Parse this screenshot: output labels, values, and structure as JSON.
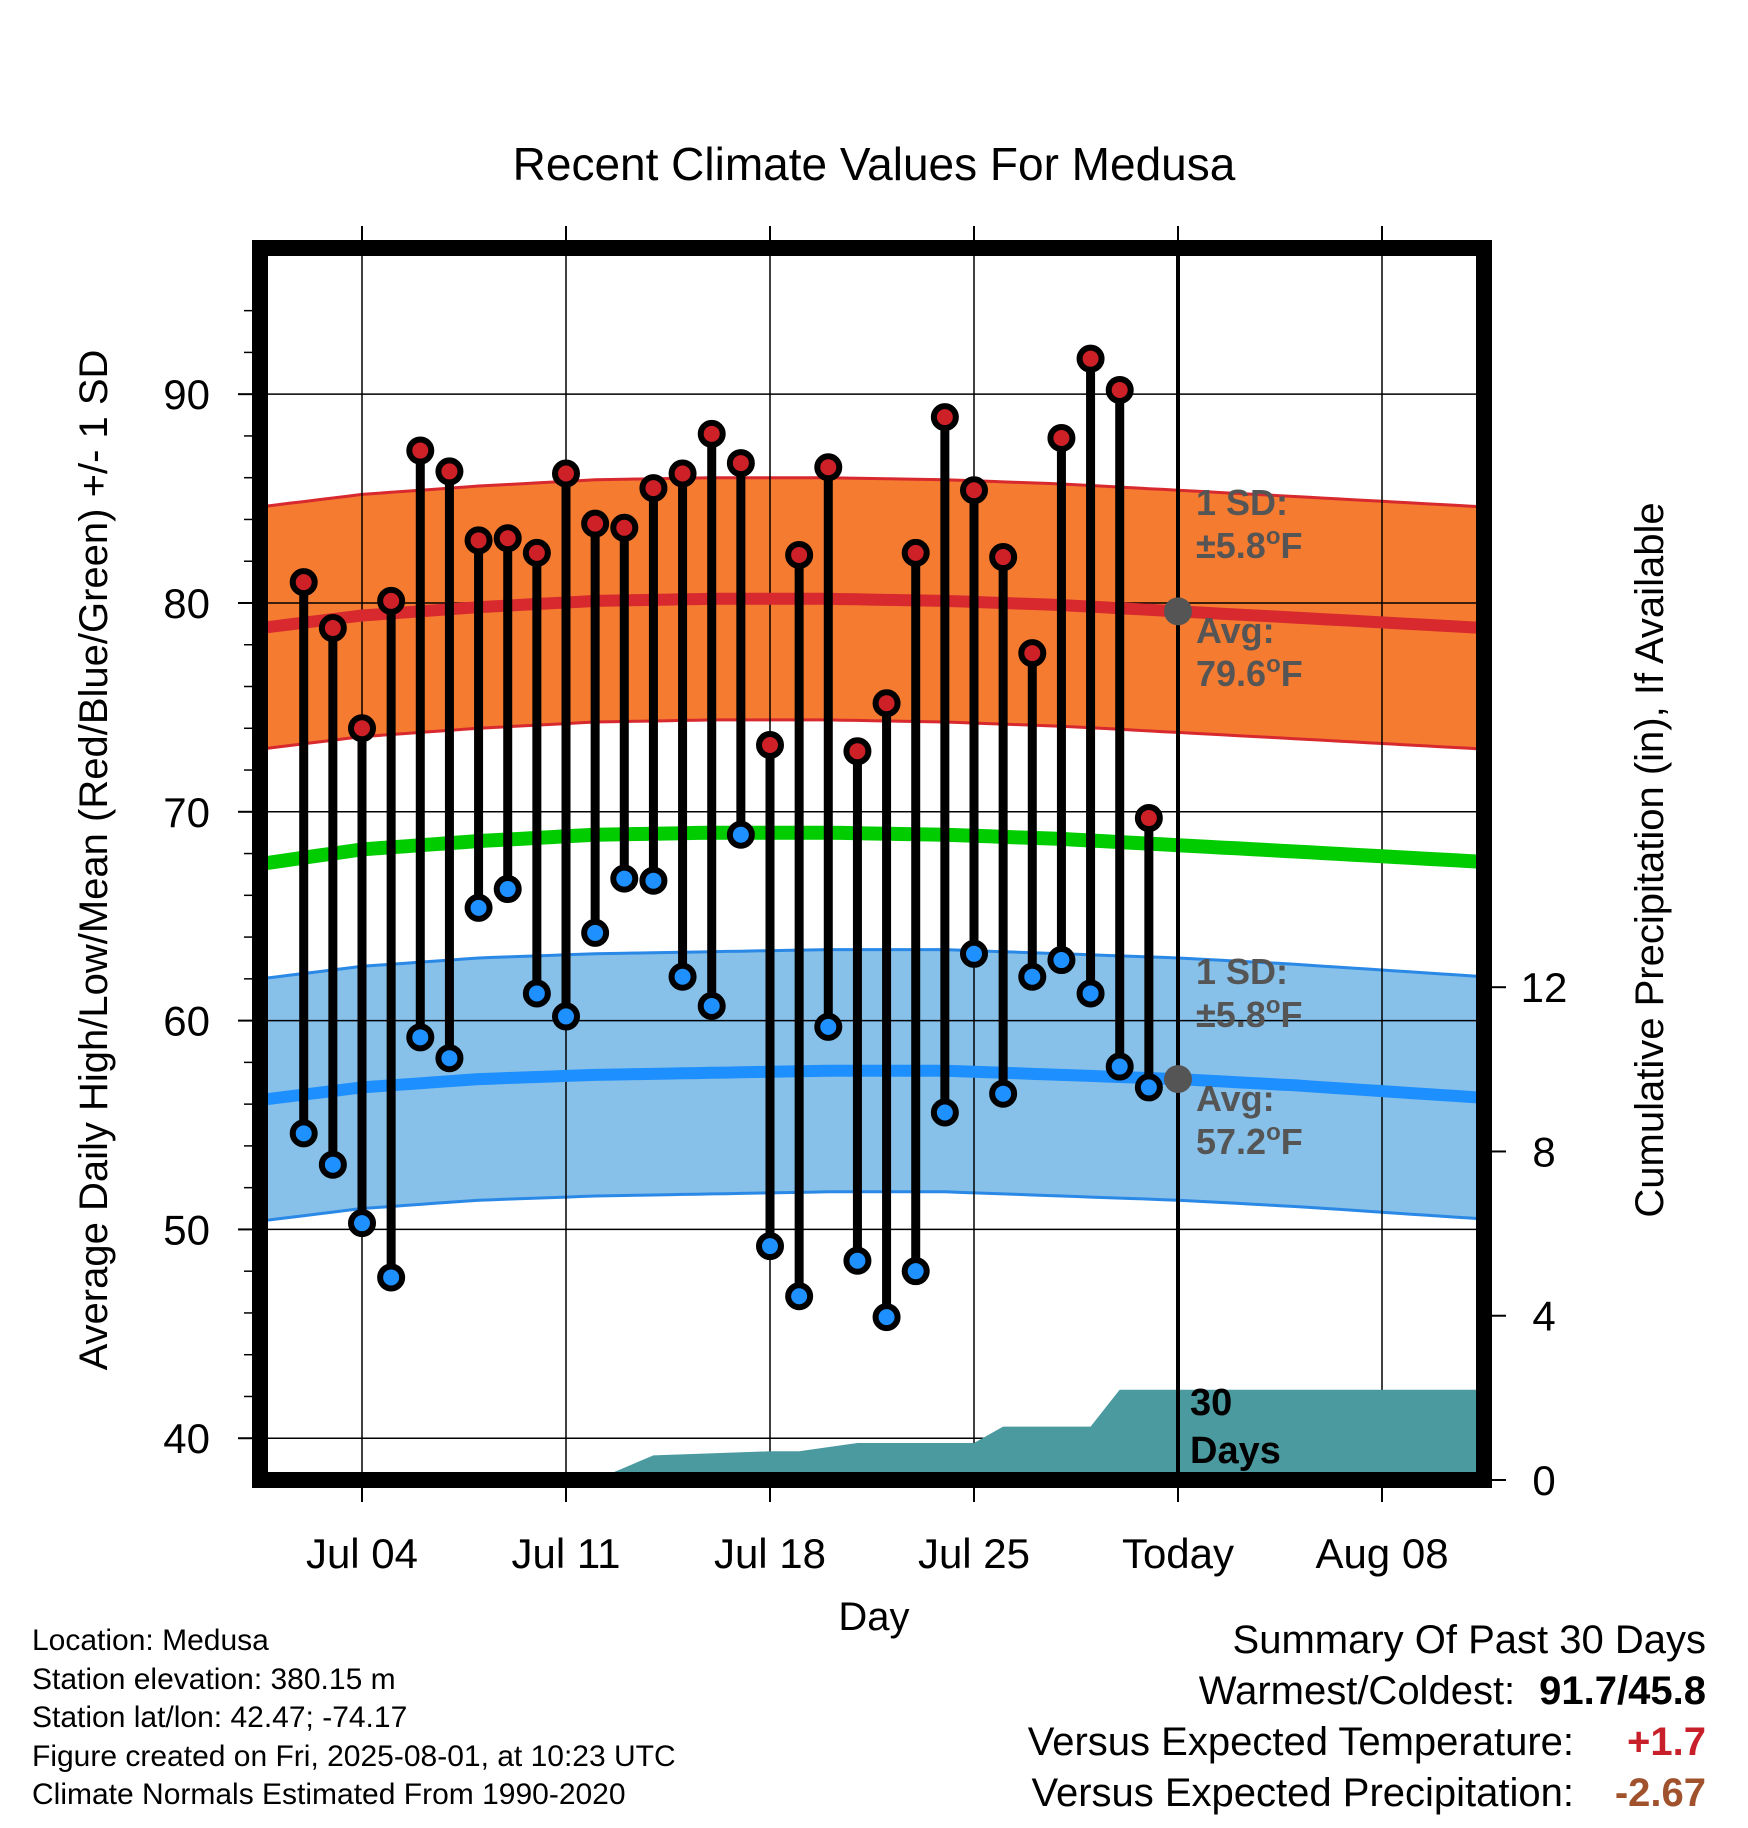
{
  "chart_data": {
    "type": "line",
    "title": "Recent Climate Values For Medusa",
    "xlabel": "Day",
    "ylabel": "Average Daily High/Low/Mean (Red/Blue/Green) +/- 1 SD",
    "y2label": "Cumulative Precipitation (in), If Available",
    "ylim": [
      38,
      97
    ],
    "y2lim": [
      0,
      30
    ],
    "xlim_days": [
      -31.5,
      10.5
    ],
    "x_tick_labels": [
      "Jul 04",
      "Jul 11",
      "Jul 18",
      "Jul 25",
      "Today",
      "Aug 08"
    ],
    "x_tick_days": [
      -28,
      -21,
      -14,
      -7,
      0,
      7
    ],
    "y_ticks": [
      40,
      50,
      60,
      70,
      80,
      90
    ],
    "y_minor_ticks": [
      42,
      44,
      46,
      48,
      52,
      54,
      56,
      58,
      62,
      64,
      66,
      68,
      72,
      74,
      76,
      78,
      82,
      84,
      86,
      88,
      92,
      94
    ],
    "y2_ticks": [
      0,
      4,
      8,
      12
    ],
    "grid": true,
    "today_marker": true,
    "colors": {
      "high_band": "#f47b30",
      "high_band_edge": "#d7292e",
      "high_mean": "#d7292e",
      "low_band": "#87c0e8",
      "low_band_edge": "#2a88e6",
      "low_mean": "#1e8fff",
      "mean_line": "#00cc00",
      "precip": "#4a9aa0",
      "high_dot": "#cd2027",
      "low_dot": "#1e90ff",
      "avg_dot": "#555555",
      "annotation": "#555555"
    },
    "normals": {
      "days": [
        -31.5,
        -28,
        -24,
        -20,
        -16,
        -12,
        -8,
        -4,
        0,
        4,
        10.5
      ],
      "high_mean": [
        78.8,
        79.4,
        79.8,
        80.1,
        80.2,
        80.2,
        80.1,
        79.9,
        79.6,
        79.3,
        78.8
      ],
      "low_mean": [
        56.2,
        56.8,
        57.2,
        57.4,
        57.5,
        57.6,
        57.6,
        57.4,
        57.2,
        56.9,
        56.3
      ],
      "daily_mean": [
        67.5,
        68.2,
        68.6,
        68.9,
        69.0,
        69.0,
        68.9,
        68.7,
        68.4,
        68.1,
        67.6
      ],
      "sd": 5.8
    },
    "series": [
      {
        "name": "High",
        "days": [
          -30,
          -29,
          -28,
          -27,
          -26,
          -25,
          -24,
          -23,
          -22,
          -21,
          -20,
          -19,
          -18,
          -17,
          -16,
          -15,
          -14,
          -13,
          -12,
          -11,
          -10,
          -9,
          -8,
          -7,
          -6,
          -5,
          -4,
          -3,
          -2,
          -1
        ],
        "values": [
          81.0,
          78.8,
          74.0,
          80.1,
          87.3,
          86.3,
          83.0,
          83.1,
          82.4,
          86.2,
          83.8,
          83.6,
          85.5,
          86.2,
          88.1,
          86.7,
          73.2,
          82.3,
          86.5,
          72.9,
          75.2,
          82.4,
          88.9,
          85.4,
          82.2,
          77.6,
          87.9,
          91.7,
          90.2,
          69.7
        ]
      },
      {
        "name": "Low",
        "days": [
          -30,
          -29,
          -28,
          -27,
          -26,
          -25,
          -24,
          -23,
          -22,
          -21,
          -20,
          -19,
          -18,
          -17,
          -16,
          -15,
          -14,
          -13,
          -12,
          -11,
          -10,
          -9,
          -8,
          -7,
          -6,
          -5,
          -4,
          -3,
          -2,
          -1
        ],
        "values": [
          54.6,
          53.1,
          50.3,
          47.7,
          59.2,
          58.2,
          65.4,
          66.3,
          61.3,
          60.2,
          64.2,
          66.8,
          66.7,
          62.1,
          60.7,
          68.9,
          49.2,
          46.8,
          59.7,
          48.5,
          45.8,
          48.0,
          55.6,
          63.2,
          56.5,
          62.1,
          62.9,
          61.3,
          57.8,
          56.8
        ]
      },
      {
        "name": "Cumulative Precipitation",
        "days": [
          -31.5,
          -20,
          -19,
          -18,
          -14,
          -13,
          -11,
          -7,
          -6,
          -5,
          -3,
          -2,
          10.5
        ],
        "values": [
          0,
          0,
          0.3,
          0.6,
          0.7,
          0.7,
          0.9,
          0.9,
          1.3,
          1.3,
          1.3,
          2.2,
          2.2
        ]
      }
    ],
    "annotations": {
      "high_sd_title": "1 SD:",
      "high_sd_value": "±5.8",
      "high_avg_title": "Avg:",
      "high_avg_value": "79.6",
      "low_sd_title": "1 SD:",
      "low_sd_value": "±5.8",
      "low_avg_title": "Avg:",
      "low_avg_value": "57.2",
      "degree_unit": "o",
      "f_unit": "F",
      "days_number": "30",
      "days_word": "Days"
    }
  },
  "footer": {
    "location": "Location: Medusa",
    "elevation": "Station elevation: 380.15 m",
    "latlon": "Station lat/lon: 42.47; -74.17",
    "created": "Figure created on Fri, 2025-08-01, at 10:23 UTC",
    "normals": "Climate Normals Estimated From 1990-2020"
  },
  "summary": {
    "heading": "Summary Of Past 30 Days",
    "warmest_label": "Warmest/Coldest:",
    "warmest_value": "91.7/45.8",
    "temp_label": "Versus Expected Temperature:",
    "temp_value": "+1.7",
    "precip_label": "Versus Expected Precipitation:",
    "precip_value": "-2.67"
  }
}
